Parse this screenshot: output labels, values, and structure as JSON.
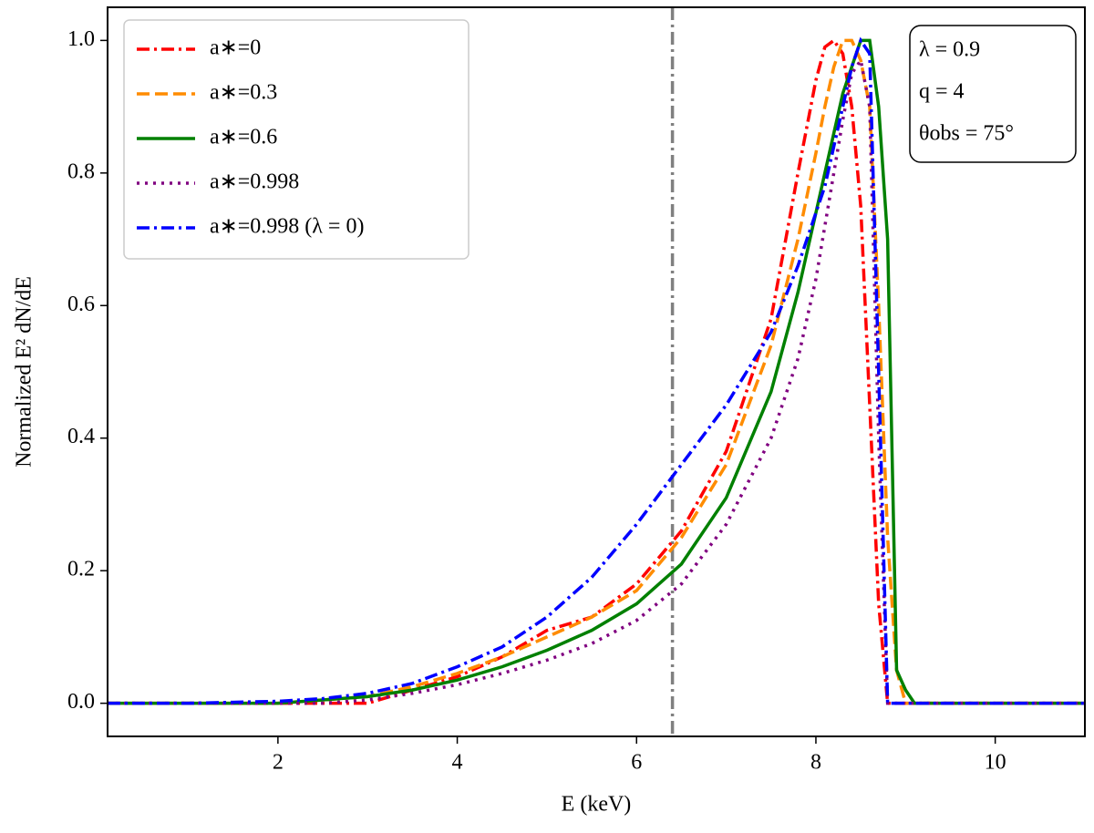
{
  "chart_data": {
    "type": "line",
    "xlabel": "E (keV)",
    "ylabel": "Normalized E² dN/dE",
    "x": [
      0.1,
      1,
      2,
      2.5,
      3,
      3.5,
      4,
      4.5,
      5,
      5.5,
      6,
      6.5,
      7,
      7.5,
      7.8,
      8.0,
      8.1,
      8.2,
      8.3,
      8.4,
      8.5,
      8.6,
      8.7,
      8.8,
      8.9,
      9.0,
      9.1,
      9.5,
      11
    ],
    "series": [
      {
        "name": "a∗=0",
        "color": "#ff0000",
        "dash": "dashdot",
        "values": [
          0,
          0,
          0,
          0,
          0,
          0.02,
          0.04,
          0.07,
          0.11,
          0.13,
          0.18,
          0.26,
          0.38,
          0.58,
          0.8,
          0.94,
          0.99,
          1.0,
          0.98,
          0.9,
          0.75,
          0.45,
          0.15,
          0,
          0,
          0,
          0,
          0,
          0
        ]
      },
      {
        "name": "a∗=0.3",
        "color": "#ff8c00",
        "dash": "dashed",
        "values": [
          0,
          0,
          0,
          0.005,
          0.01,
          0.025,
          0.045,
          0.07,
          0.1,
          0.13,
          0.17,
          0.25,
          0.36,
          0.54,
          0.7,
          0.83,
          0.9,
          0.96,
          1.0,
          1.0,
          0.97,
          0.9,
          0.6,
          0.25,
          0.05,
          0,
          0,
          0,
          0
        ]
      },
      {
        "name": "a∗=0.6",
        "color": "#008000",
        "dash": "solid",
        "values": [
          0,
          0,
          0,
          0.005,
          0.01,
          0.02,
          0.035,
          0.055,
          0.08,
          0.11,
          0.15,
          0.21,
          0.31,
          0.47,
          0.62,
          0.74,
          0.8,
          0.86,
          0.92,
          0.96,
          1.0,
          1.0,
          0.9,
          0.7,
          0.05,
          0.02,
          0,
          0,
          0
        ]
      },
      {
        "name": "a∗=0.998",
        "color": "#800080",
        "dash": "dotted",
        "values": [
          0,
          0,
          0,
          0,
          0.005,
          0.015,
          0.028,
          0.045,
          0.065,
          0.09,
          0.125,
          0.18,
          0.27,
          0.4,
          0.52,
          0.64,
          0.72,
          0.8,
          0.88,
          0.95,
          0.97,
          0.9,
          0.4,
          0,
          0,
          0,
          0,
          0,
          0
        ]
      },
      {
        "name": "a∗=0.998 (λ = 0)",
        "color": "#0000ff",
        "dash": "dashdot",
        "values": [
          0,
          0,
          0.003,
          0.007,
          0.015,
          0.03,
          0.055,
          0.085,
          0.13,
          0.19,
          0.27,
          0.36,
          0.45,
          0.56,
          0.66,
          0.74,
          0.78,
          0.84,
          0.9,
          0.96,
          1.0,
          0.98,
          0.5,
          0,
          0,
          0,
          0,
          0,
          0
        ]
      }
    ],
    "vline": 6.4,
    "annotations": [
      "λ = 0.9",
      "q = 4",
      "θobs = 75°"
    ],
    "xlim": [
      0.1,
      11
    ],
    "ylim": [
      -0.05,
      1.05
    ],
    "xticks": [
      2,
      4,
      6,
      8,
      10
    ],
    "yticks": [
      {
        "value": 0,
        "label": "0.0"
      },
      0.2,
      0.4,
      0.6,
      0.8,
      {
        "value": 1,
        "label": "1.0"
      }
    ],
    "legend": "upper left"
  }
}
